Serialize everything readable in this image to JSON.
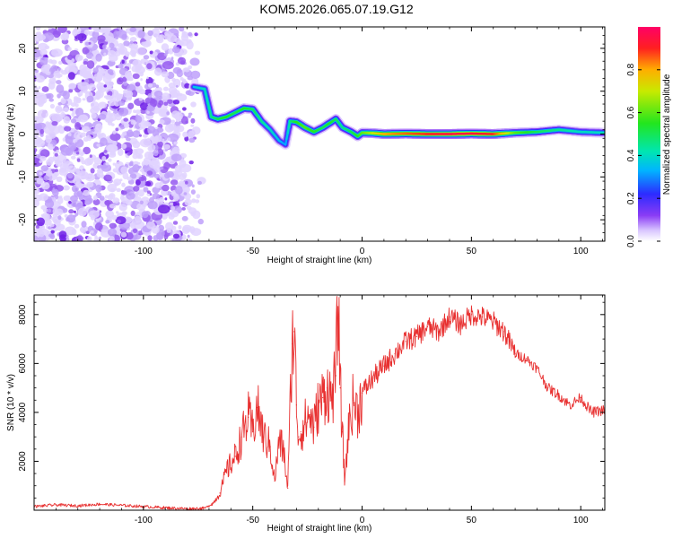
{
  "title": "KOM5.2026.065.07.19.G12",
  "colors": {
    "snr_line": "#e83030",
    "axis": "#000000",
    "background": "#ffffff",
    "noise": "#9a5cf0"
  },
  "chart_data": [
    {
      "type": "heatmap",
      "title": "KOM5.2026.065.07.19.G12",
      "xlabel": "Height of straight line (km)",
      "ylabel": "Frequency (Hz)",
      "xlim": [
        -150,
        111
      ],
      "ylim": [
        -25,
        25
      ],
      "xticks": [
        "-100",
        "-50",
        "0",
        "50",
        "100"
      ],
      "yticks": [
        "20",
        "10",
        "0",
        "-10",
        "-20"
      ],
      "xtick_values": [
        -100,
        -50,
        0,
        50,
        100
      ],
      "ytick_values": [
        20,
        10,
        0,
        -10,
        -20
      ],
      "noise_region_x": [
        -150,
        -73
      ],
      "ridge": {
        "x": [
          -77,
          -72,
          -69,
          -66,
          -62,
          -58,
          -54,
          -50,
          -46,
          -42,
          -38,
          -35,
          -33,
          -30,
          -26,
          -22,
          -18,
          -15,
          -12,
          -9,
          -5,
          -2,
          0,
          5,
          10,
          20,
          30,
          40,
          50,
          60,
          70,
          80,
          90,
          100,
          111
        ],
        "frequency": [
          11,
          10.5,
          4,
          3.5,
          4,
          5,
          6,
          5.8,
          3,
          1,
          -1.5,
          -2.5,
          3,
          2.8,
          1.5,
          0.5,
          1.5,
          2.5,
          3.5,
          1.5,
          0.5,
          -0.5,
          0.3,
          0.2,
          0,
          0.1,
          0,
          0,
          0.1,
          0,
          0.3,
          0.5,
          1,
          0.5,
          0.3
        ],
        "amplitude": [
          0.35,
          0.4,
          0.45,
          0.5,
          0.55,
          0.5,
          0.55,
          0.5,
          0.45,
          0.4,
          0.35,
          0.3,
          0.45,
          0.55,
          0.6,
          0.55,
          0.5,
          0.55,
          0.5,
          0.45,
          0.5,
          0.55,
          0.6,
          0.7,
          0.8,
          0.85,
          0.9,
          0.95,
          0.95,
          0.9,
          0.6,
          0.5,
          0.45,
          0.4,
          0.4
        ]
      },
      "colorbar": {
        "label": "Normalized spectral amplitude",
        "ticks": [
          "0.0",
          "0.2",
          "0.4",
          "0.6",
          "0.8"
        ],
        "tick_values": [
          0,
          0.2,
          0.4,
          0.6,
          0.8
        ],
        "range": [
          0,
          1
        ]
      }
    },
    {
      "type": "line",
      "xlabel": "Height of straight line (km)",
      "ylabel": "SNR (10 * v/v)",
      "xlim": [
        -150,
        111
      ],
      "ylim": [
        0,
        8800
      ],
      "xticks": [
        "-100",
        "-50",
        "0",
        "50",
        "100"
      ],
      "yticks": [
        "8000",
        "6000",
        "4000",
        "2000"
      ],
      "xtick_values": [
        -100,
        -50,
        0,
        50,
        100
      ],
      "ytick_values": [
        8000,
        6000,
        4000,
        2000
      ],
      "series": [
        {
          "name": "SNR",
          "x": [
            -150,
            -140,
            -130,
            -120,
            -110,
            -100,
            -90,
            -80,
            -72,
            -68,
            -65,
            -62,
            -58,
            -55,
            -52,
            -50,
            -48,
            -45,
            -42,
            -40,
            -38,
            -36,
            -34,
            -32,
            -31,
            -30,
            -29,
            -28,
            -26,
            -24,
            -22,
            -20,
            -18,
            -16,
            -14,
            -12,
            -11,
            -10,
            -9,
            -8,
            -6,
            -4,
            -2,
            0,
            5,
            10,
            15,
            20,
            25,
            30,
            35,
            40,
            45,
            50,
            55,
            60,
            65,
            70,
            75,
            80,
            85,
            90,
            95,
            100,
            105,
            111
          ],
          "y": [
            150,
            220,
            180,
            250,
            200,
            150,
            100,
            60,
            80,
            300,
            700,
            1600,
            2200,
            3000,
            3800,
            3200,
            4200,
            3000,
            2600,
            1200,
            2800,
            2500,
            900,
            6800,
            7300,
            4300,
            3000,
            3200,
            3600,
            3900,
            3400,
            4300,
            4600,
            5000,
            4500,
            5500,
            8800,
            5000,
            3200,
            1200,
            3500,
            4500,
            4000,
            4800,
            5400,
            5900,
            6400,
            6900,
            7100,
            7500,
            7300,
            7900,
            7600,
            8000,
            7900,
            7700,
            7300,
            6400,
            6200,
            5800,
            5000,
            4700,
            4300,
            4600,
            4000,
            4100
          ]
        }
      ]
    }
  ]
}
